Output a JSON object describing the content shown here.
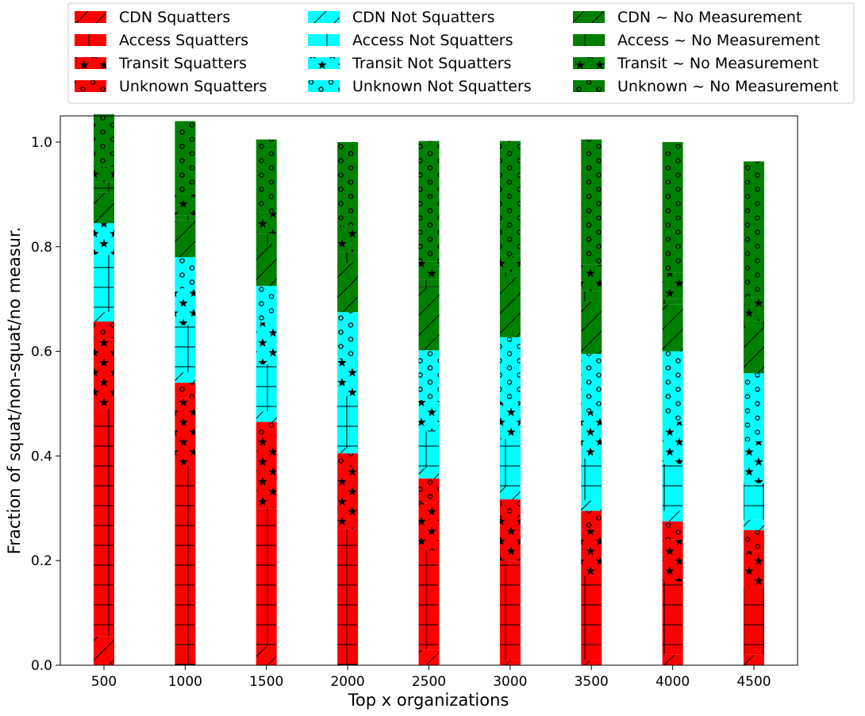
{
  "chart_data": {
    "type": "bar",
    "stacked": true,
    "xlabel": "Top x organizations",
    "ylabel": "Fraction of squat/non-squat/no measur.",
    "ylim": [
      0,
      1.05
    ],
    "yticks": [
      "0.0",
      "0.2",
      "0.4",
      "0.6",
      "0.8",
      "1.0"
    ],
    "categories": [
      "500",
      "1000",
      "1500",
      "2000",
      "2500",
      "3000",
      "3500",
      "4000",
      "4500"
    ],
    "legend": {
      "placement": "top",
      "columns": 3
    },
    "colors": {
      "squat": "#ff0000",
      "notsquat": "#00ffff",
      "nomeas": "#008000"
    },
    "series": [
      {
        "name": "CDN Squatters",
        "group": "squat",
        "pattern": "slash",
        "values": [
          0.055,
          0.0,
          0.035,
          0.0,
          0.03,
          0.01,
          0.01,
          0.02,
          0.02
        ]
      },
      {
        "name": "Access Squatters",
        "group": "squat",
        "pattern": "grid",
        "values": [
          0.435,
          0.38,
          0.265,
          0.26,
          0.19,
          0.19,
          0.16,
          0.14,
          0.128
        ]
      },
      {
        "name": "Transit Squatters",
        "group": "squat",
        "pattern": "star",
        "values": [
          0.135,
          0.13,
          0.14,
          0.12,
          0.09,
          0.08,
          0.09,
          0.08,
          0.07
        ]
      },
      {
        "name": "Unknown Squatters",
        "group": "squat",
        "pattern": "circle",
        "values": [
          0.032,
          0.03,
          0.025,
          0.025,
          0.047,
          0.037,
          0.035,
          0.035,
          0.04
        ]
      },
      {
        "name": "CDN Not Squatters",
        "group": "notsquat",
        "pattern": "slash",
        "values": [
          0.018,
          0.02,
          0.02,
          0.01,
          0.02,
          0.025,
          0.02,
          0.02,
          0.02
        ]
      },
      {
        "name": "Access Not Squatters",
        "group": "notsquat",
        "pattern": "grid",
        "values": [
          0.11,
          0.09,
          0.09,
          0.1,
          0.07,
          0.09,
          0.08,
          0.09,
          0.07
        ]
      },
      {
        "name": "Transit Not Squatters",
        "group": "notsquat",
        "pattern": "star",
        "values": [
          0.06,
          0.07,
          0.08,
          0.07,
          0.06,
          0.07,
          0.09,
          0.08,
          0.08
        ]
      },
      {
        "name": "Unknown Not Squatters",
        "group": "notsquat",
        "pattern": "circle",
        "values": [
          0.0,
          0.06,
          0.07,
          0.09,
          0.095,
          0.125,
          0.11,
          0.135,
          0.13
        ]
      },
      {
        "name": "CDN ~ No Measurement",
        "group": "nomeas",
        "pattern": "slash",
        "values": [
          0.058,
          0.07,
          0.08,
          0.095,
          0.12,
          0.115,
          0.1,
          0.09,
          0.09
        ]
      },
      {
        "name": "Access ~ No Measurement",
        "group": "nomeas",
        "pattern": "grid",
        "values": [
          0.02,
          0.01,
          0.02,
          0.02,
          0.015,
          0.01,
          0.02,
          0.01,
          0.01
        ]
      },
      {
        "name": "Transit ~ No Measurement",
        "group": "nomeas",
        "pattern": "star",
        "values": [
          0.03,
          0.04,
          0.04,
          0.05,
          0.035,
          0.03,
          0.05,
          0.05,
          0.045
        ]
      },
      {
        "name": "Unknown ~ No Measurement",
        "group": "nomeas",
        "pattern": "circle",
        "values": [
          0.1,
          0.14,
          0.14,
          0.16,
          0.23,
          0.22,
          0.24,
          0.25,
          0.26
        ]
      }
    ]
  }
}
